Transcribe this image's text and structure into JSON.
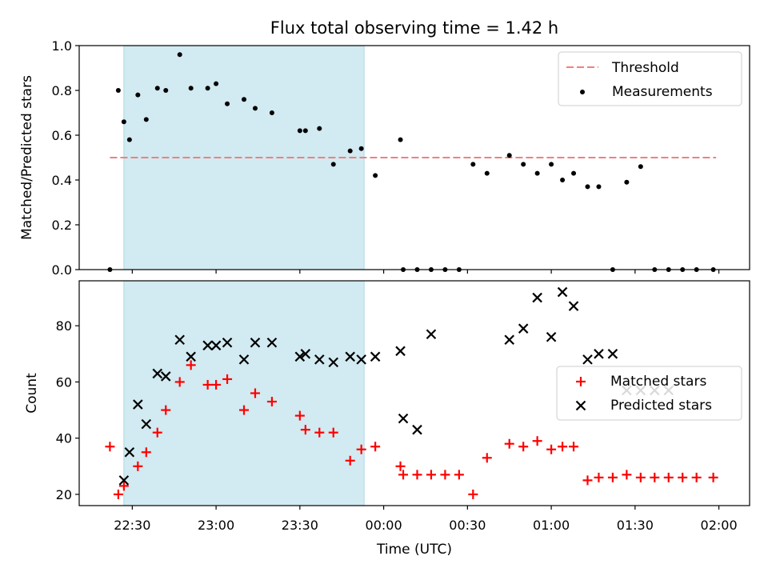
{
  "title": "Flux total observing time = 1.42 h",
  "xlabel": "Time (UTC)",
  "x_ticks": [
    "22:30",
    "23:00",
    "23:30",
    "00:00",
    "00:30",
    "01:00",
    "01:30",
    "02:00"
  ],
  "chart_data": [
    {
      "type": "scatter",
      "panel": "top",
      "ylabel": "Matched/Predicted stars",
      "ylim": [
        0,
        1.0
      ],
      "y_ticks": [
        "0.0",
        "0.2",
        "0.4",
        "0.6",
        "0.8",
        "1.0"
      ],
      "x_range": [
        "22:11",
        "02:11"
      ],
      "shaded_interval": {
        "start": "22:27",
        "end": "23:53",
        "color": "#add8e6"
      },
      "threshold": {
        "label": "Threshold",
        "value": 0.5,
        "x_start": "22:22",
        "x_end": "01:59",
        "color": "#f08080"
      },
      "legend": {
        "position": "upper right",
        "entries": [
          "Threshold",
          "Measurements"
        ]
      },
      "series": [
        {
          "name": "Measurements",
          "color": "#000000",
          "marker": "dot",
          "x": [
            "22:22",
            "22:25",
            "22:27",
            "22:29",
            "22:32",
            "22:35",
            "22:39",
            "22:42",
            "22:47",
            "22:51",
            "22:57",
            "23:00",
            "23:04",
            "23:10",
            "23:14",
            "23:20",
            "23:30",
            "23:32",
            "23:37",
            "23:42",
            "23:48",
            "23:52",
            "23:57",
            "00:06",
            "00:07",
            "00:12",
            "00:17",
            "00:22",
            "00:27",
            "00:32",
            "00:37",
            "00:45",
            "00:50",
            "00:55",
            "01:00",
            "01:04",
            "01:08",
            "01:13",
            "01:17",
            "01:22",
            "01:27",
            "01:32",
            "01:37",
            "01:42",
            "01:47",
            "01:52",
            "01:58"
          ],
          "y": [
            0.0,
            0.8,
            0.66,
            0.58,
            0.78,
            0.67,
            0.81,
            0.8,
            0.96,
            0.81,
            0.81,
            0.83,
            0.74,
            0.76,
            0.72,
            0.7,
            0.62,
            0.62,
            0.63,
            0.47,
            0.53,
            0.54,
            0.42,
            0.58,
            0.0,
            0.0,
            0.0,
            0.0,
            0.0,
            0.47,
            0.43,
            0.51,
            0.47,
            0.43,
            0.47,
            0.4,
            0.43,
            0.37,
            0.37,
            0.0,
            0.39,
            0.46,
            0.0,
            0.0,
            0.0,
            0.0,
            0.0
          ]
        }
      ]
    },
    {
      "type": "scatter",
      "panel": "bottom",
      "ylabel": "Count",
      "ylim": [
        16,
        96
      ],
      "y_ticks": [
        "20",
        "40",
        "60",
        "80"
      ],
      "x_range": [
        "22:11",
        "02:11"
      ],
      "shaded_interval": {
        "start": "22:27",
        "end": "23:53",
        "color": "#add8e6"
      },
      "legend": {
        "position": "center right",
        "entries": [
          "Matched stars",
          "Predicted stars"
        ]
      },
      "series": [
        {
          "name": "Matched stars",
          "color": "#ff0000",
          "marker": "plus",
          "x": [
            "22:22",
            "22:25",
            "22:27",
            "22:32",
            "22:35",
            "22:39",
            "22:42",
            "22:47",
            "22:51",
            "22:57",
            "23:00",
            "23:04",
            "23:10",
            "23:14",
            "23:20",
            "23:30",
            "23:32",
            "23:37",
            "23:42",
            "23:48",
            "23:52",
            "23:57",
            "00:06",
            "00:07",
            "00:12",
            "00:17",
            "00:22",
            "00:27",
            "00:32",
            "00:37",
            "00:45",
            "00:50",
            "00:55",
            "01:00",
            "01:04",
            "01:08",
            "01:13",
            "01:17",
            "01:22",
            "01:27",
            "01:32",
            "01:37",
            "01:42",
            "01:47",
            "01:52",
            "01:58"
          ],
          "y": [
            37,
            20,
            23,
            30,
            35,
            42,
            50,
            60,
            66,
            59,
            59,
            61,
            50,
            56,
            53,
            48,
            43,
            42,
            42,
            32,
            36,
            37,
            30,
            27,
            27,
            27,
            27,
            27,
            20,
            33,
            38,
            37,
            39,
            36,
            37,
            37,
            25,
            26,
            26,
            27,
            26,
            26,
            26,
            26,
            26,
            26
          ]
        },
        {
          "name": "Predicted stars",
          "color": "#000000",
          "marker": "x",
          "x": [
            "22:27",
            "22:29",
            "22:32",
            "22:35",
            "22:39",
            "22:42",
            "22:47",
            "22:51",
            "22:57",
            "23:00",
            "23:04",
            "23:10",
            "23:14",
            "23:20",
            "23:30",
            "23:32",
            "23:37",
            "23:42",
            "23:48",
            "23:52",
            "23:57",
            "00:06",
            "00:07",
            "00:12",
            "00:17",
            "00:45",
            "00:50",
            "00:55",
            "01:00",
            "01:04",
            "01:08",
            "01:13",
            "01:17",
            "01:22",
            "01:27",
            "01:32",
            "01:37",
            "01:42"
          ],
          "y": [
            25,
            35,
            52,
            45,
            63,
            62,
            75,
            69,
            73,
            73,
            74,
            68,
            74,
            74,
            69,
            70,
            68,
            67,
            69,
            68,
            69,
            71,
            47,
            43,
            77,
            75,
            79,
            90,
            76,
            92,
            87,
            68,
            70,
            70,
            57,
            57,
            57,
            57
          ]
        }
      ]
    }
  ]
}
